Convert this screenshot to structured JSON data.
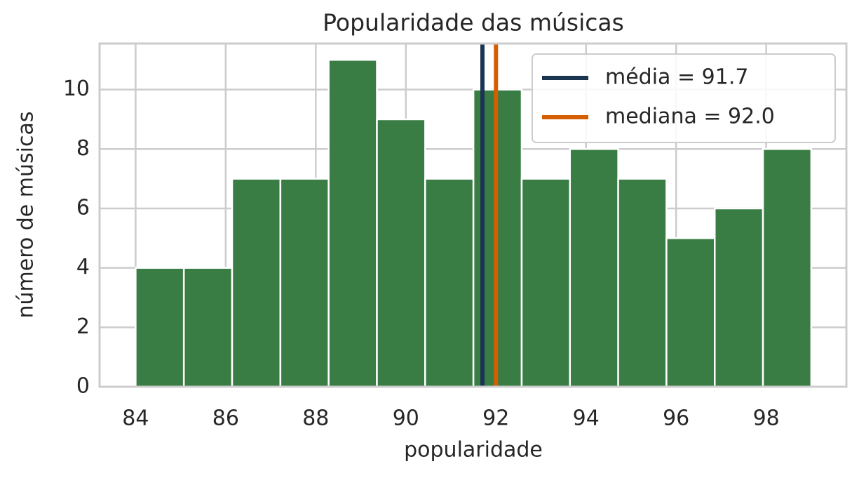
{
  "chart_data": {
    "type": "histogram",
    "title": "Popularidade das músicas",
    "x_label": "popularidade",
    "y_label": "número de músicas",
    "bins": [
      84,
      85.0714,
      86.1429,
      87.2143,
      88.2857,
      89.3571,
      90.4286,
      91.5,
      92.5714,
      93.6429,
      94.7143,
      95.7857,
      96.8571,
      97.9286,
      99
    ],
    "values": [
      4,
      4,
      7,
      7,
      11,
      9,
      7,
      10,
      7,
      8,
      7,
      5,
      6,
      8
    ],
    "color": "#3a7d44",
    "xlim": [
      83.2,
      99.78
    ],
    "xticks": [
      84,
      86,
      88,
      90,
      92,
      94,
      96,
      98
    ],
    "ylim": [
      0,
      11.55
    ],
    "yticks": [
      0,
      2,
      4,
      6,
      8,
      10
    ],
    "grid": true,
    "vlines": [
      {
        "name": "média = 91.7",
        "value": 91.7,
        "color": "#1b3551"
      },
      {
        "name": "mediana = 92.0",
        "value": 92.0,
        "color": "#d55e00"
      }
    ],
    "legend": "upper right"
  }
}
